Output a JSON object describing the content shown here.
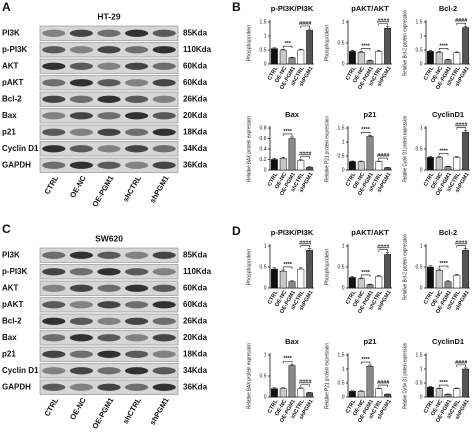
{
  "blots": [
    {
      "panel": "A",
      "cell_line": "HT-29",
      "lanes": [
        "CTRL",
        "OE-NC",
        "OE-PGM1",
        "shCTRL",
        "shPGM1"
      ],
      "rows": [
        {
          "protein": "PI3K",
          "size": "85Kda"
        },
        {
          "protein": "p-PI3K",
          "size": "110Kda"
        },
        {
          "protein": "AKT",
          "size": "60Kda"
        },
        {
          "protein": "pAKT",
          "size": "60Kda"
        },
        {
          "protein": "Bcl-2",
          "size": "26Kda"
        },
        {
          "protein": "Bax",
          "size": "20Kda"
        },
        {
          "protein": "p21",
          "size": "18Kda"
        },
        {
          "protein": "Cyclin D1",
          "size": "34Kda"
        },
        {
          "protein": "GAPDH",
          "size": "36Kda"
        }
      ]
    },
    {
      "panel": "C",
      "cell_line": "SW620",
      "lanes": [
        "CTRL",
        "OE-NC",
        "OE-PGM1",
        "shCTRL",
        "shPGM1"
      ],
      "rows": [
        {
          "protein": "PI3K",
          "size": "85Kda"
        },
        {
          "protein": "p-PI3K",
          "size": "110Kda"
        },
        {
          "protein": "AKT",
          "size": "60Kda"
        },
        {
          "protein": "pAKT",
          "size": "60Kda"
        },
        {
          "protein": "Bcl-2",
          "size": "26Kda"
        },
        {
          "protein": "Bax",
          "size": "20Kda"
        },
        {
          "protein": "p21",
          "size": "18Kda"
        },
        {
          "protein": "Cyclin D1",
          "size": "34Kda"
        },
        {
          "protein": "GAPDH",
          "size": "36Kda"
        }
      ]
    }
  ],
  "chart_panel_labels": [
    "B",
    "D"
  ],
  "chart_data": [
    {
      "type": "bar",
      "title": "p-PI3K/PI3K",
      "y_label": "Phosphoprotein",
      "categories": [
        "CTRL",
        "OE-NC",
        "OE-PGM1",
        "shCTRL",
        "shPGM1"
      ],
      "values": [
        0.55,
        0.5,
        0.22,
        0.5,
        1.2
      ],
      "errors": [
        0.03,
        0.03,
        0.02,
        0.03,
        0.05
      ],
      "colors": [
        "#111111",
        "#c8c8c8",
        "#8a8a8a",
        "#ffffff",
        "#555555"
      ],
      "ylim": [
        0,
        1.5
      ],
      "yticks": [
        0,
        0.5,
        1,
        1.5
      ],
      "significance": [
        "***",
        "####"
      ]
    },
    {
      "type": "bar",
      "title": "pAKT/AKT",
      "y_label": "Phosphoprotein",
      "categories": [
        "CTRL",
        "OE-NC",
        "OE-PGM1",
        "shCTRL",
        "shPGM1"
      ],
      "values": [
        0.3,
        0.28,
        0.08,
        0.3,
        0.85
      ],
      "errors": [
        0.02,
        0.02,
        0.01,
        0.02,
        0.04
      ],
      "colors": [
        "#111111",
        "#c8c8c8",
        "#8a8a8a",
        "#ffffff",
        "#555555"
      ],
      "ylim": [
        0,
        1
      ],
      "yticks": [
        0,
        0.5,
        1
      ],
      "significance": [
        "****",
        "####"
      ]
    },
    {
      "type": "bar",
      "title": "Bcl-2",
      "y_label": "Relative Bcl-2 protein expression",
      "categories": [
        "CTRL",
        "OE-NC",
        "OE-PGM1",
        "shCTRL",
        "shPGM1"
      ],
      "values": [
        0.45,
        0.42,
        0.15,
        0.4,
        1.3
      ],
      "errors": [
        0.03,
        0.03,
        0.02,
        0.03,
        0.05
      ],
      "colors": [
        "#111111",
        "#c8c8c8",
        "#8a8a8a",
        "#ffffff",
        "#555555"
      ],
      "ylim": [
        0,
        1.5
      ],
      "yticks": [
        0,
        0.5,
        1,
        1.5
      ],
      "significance": [
        "****",
        "####"
      ]
    },
    {
      "type": "bar",
      "title": "Bax",
      "y_label": "Relative BAX protein expression",
      "categories": [
        "CTRL",
        "OE-NC",
        "OE-PGM1",
        "shCTRL",
        "shPGM1"
      ],
      "values": [
        0.2,
        0.22,
        0.6,
        0.18,
        0.05
      ],
      "errors": [
        0.02,
        0.02,
        0.03,
        0.02,
        0.01
      ],
      "colors": [
        "#111111",
        "#c8c8c8",
        "#8a8a8a",
        "#ffffff",
        "#555555"
      ],
      "ylim": [
        0,
        0.8
      ],
      "yticks": [
        0,
        0.2,
        0.4,
        0.6,
        0.8
      ],
      "significance": [
        "****",
        "####"
      ]
    },
    {
      "type": "bar",
      "title": "p21",
      "y_label": "Relative P21 protein expression",
      "categories": [
        "CTRL",
        "OE-NC",
        "OE-PGM1",
        "shCTRL",
        "shPGM1"
      ],
      "values": [
        0.3,
        0.3,
        1.2,
        0.3,
        0.08
      ],
      "errors": [
        0.02,
        0.02,
        0.04,
        0.02,
        0.01
      ],
      "colors": [
        "#111111",
        "#c8c8c8",
        "#8a8a8a",
        "#ffffff",
        "#555555"
      ],
      "ylim": [
        0,
        1.5
      ],
      "yticks": [
        0,
        0.5,
        1,
        1.5
      ],
      "significance": [
        "****",
        "####"
      ]
    },
    {
      "type": "bar",
      "title": "CyclinD1",
      "y_label": "Relative Cyclin D1 protein expression",
      "categories": [
        "CTRL",
        "OE-NC",
        "OE-PGM1",
        "shCTRL",
        "shPGM1"
      ],
      "values": [
        0.3,
        0.3,
        0.08,
        0.3,
        0.9
      ],
      "errors": [
        0.02,
        0.02,
        0.01,
        0.02,
        0.04
      ],
      "colors": [
        "#111111",
        "#c8c8c8",
        "#8a8a8a",
        "#ffffff",
        "#555555"
      ],
      "ylim": [
        0,
        1
      ],
      "yticks": [
        0,
        0.5,
        1
      ],
      "significance": [
        "****",
        "####"
      ]
    },
    {
      "type": "bar",
      "title": "p-PI3K/PI3K",
      "y_label": "Phosphoprotein",
      "categories": [
        "CTRL",
        "OE-NC",
        "OE-PGM1",
        "shCTRL",
        "shPGM1"
      ],
      "values": [
        0.45,
        0.4,
        0.15,
        0.45,
        0.9
      ],
      "errors": [
        0.03,
        0.03,
        0.02,
        0.03,
        0.04
      ],
      "colors": [
        "#111111",
        "#c8c8c8",
        "#8a8a8a",
        "#ffffff",
        "#555555"
      ],
      "ylim": [
        0,
        1
      ],
      "yticks": [
        0,
        0.5,
        1
      ],
      "significance": [
        "****",
        "####"
      ]
    },
    {
      "type": "bar",
      "title": "pAKT/AKT",
      "y_label": "Phosphoprotein",
      "categories": [
        "CTRL",
        "OE-NC",
        "OE-PGM1",
        "shCTRL",
        "shPGM1"
      ],
      "values": [
        0.25,
        0.22,
        0.08,
        0.28,
        0.8
      ],
      "errors": [
        0.02,
        0.02,
        0.01,
        0.02,
        0.04
      ],
      "colors": [
        "#111111",
        "#c8c8c8",
        "#8a8a8a",
        "#ffffff",
        "#555555"
      ],
      "ylim": [
        0,
        1
      ],
      "yticks": [
        0,
        0.5,
        1
      ],
      "significance": [
        "****",
        "####"
      ]
    },
    {
      "type": "bar",
      "title": "Bcl-2",
      "y_label": "Relative Bcl-2 protein expression",
      "categories": [
        "CTRL",
        "OE-NC",
        "OE-PGM1",
        "shCTRL",
        "shPGM1"
      ],
      "values": [
        0.5,
        0.42,
        0.15,
        0.3,
        0.9
      ],
      "errors": [
        0.03,
        0.03,
        0.02,
        0.02,
        0.04
      ],
      "colors": [
        "#111111",
        "#c8c8c8",
        "#8a8a8a",
        "#ffffff",
        "#555555"
      ],
      "ylim": [
        0,
        1
      ],
      "yticks": [
        0,
        0.5,
        1
      ],
      "significance": [
        "****",
        "####"
      ]
    },
    {
      "type": "bar",
      "title": "Bax",
      "y_label": "Relative BAX protein expression",
      "categories": [
        "CTRL",
        "OE-NC",
        "OE-PGM1",
        "shCTRL",
        "shPGM1"
      ],
      "values": [
        0.2,
        0.2,
        0.75,
        0.2,
        0.1
      ],
      "errors": [
        0.02,
        0.02,
        0.03,
        0.02,
        0.01
      ],
      "colors": [
        "#111111",
        "#c8c8c8",
        "#8a8a8a",
        "#ffffff",
        "#555555"
      ],
      "ylim": [
        0,
        1
      ],
      "yticks": [
        0,
        0.5,
        1
      ],
      "significance": [
        "****",
        "####"
      ]
    },
    {
      "type": "bar",
      "title": "p21",
      "y_label": "Relative P21 protein expression",
      "categories": [
        "CTRL",
        "OE-NC",
        "OE-PGM1",
        "shCTRL",
        "shPGM1"
      ],
      "values": [
        0.2,
        0.2,
        1.1,
        0.3,
        0.1
      ],
      "errors": [
        0.02,
        0.02,
        0.04,
        0.02,
        0.01
      ],
      "colors": [
        "#111111",
        "#c8c8c8",
        "#8a8a8a",
        "#ffffff",
        "#555555"
      ],
      "ylim": [
        0,
        1.5
      ],
      "yticks": [
        0,
        0.5,
        1,
        1.5
      ],
      "significance": [
        "****",
        "####"
      ]
    },
    {
      "type": "bar",
      "title": "CyclinD1",
      "y_label": "Relative Cyclin D1 protein expression",
      "categories": [
        "CTRL",
        "OE-NC",
        "OE-PGM1",
        "shCTRL",
        "shPGM1"
      ],
      "values": [
        0.35,
        0.3,
        0.1,
        0.3,
        1.0
      ],
      "errors": [
        0.02,
        0.02,
        0.01,
        0.02,
        0.04
      ],
      "colors": [
        "#111111",
        "#c8c8c8",
        "#8a8a8a",
        "#ffffff",
        "#555555"
      ],
      "ylim": [
        0,
        1.5
      ],
      "yticks": [
        0,
        0.5,
        1,
        1.5
      ],
      "significance": [
        "****",
        "####"
      ]
    }
  ]
}
